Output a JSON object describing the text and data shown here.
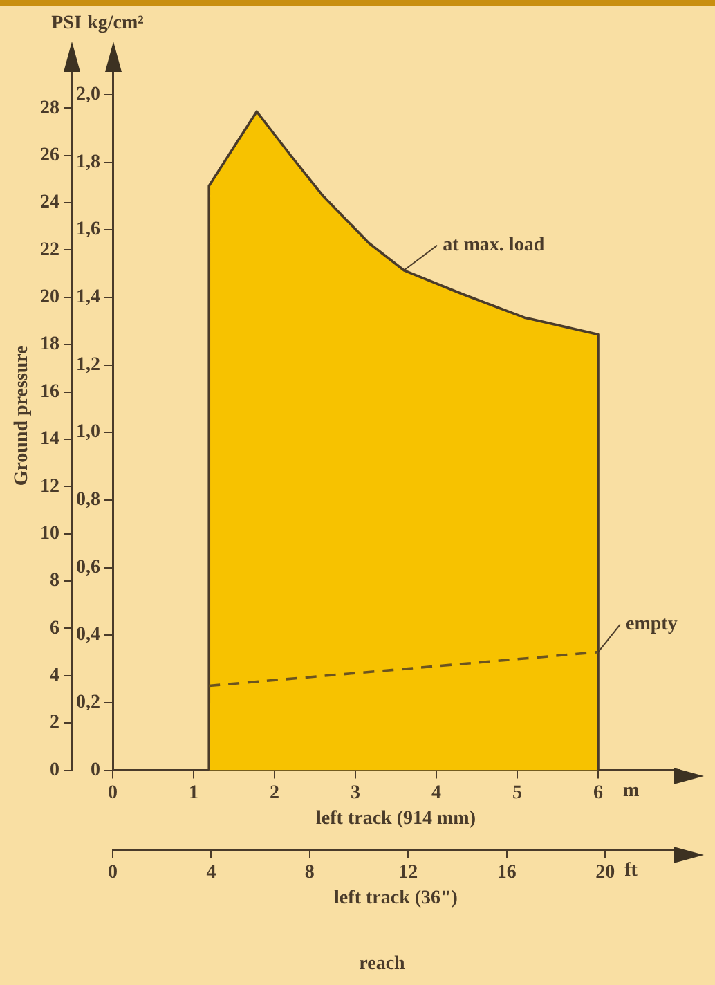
{
  "chart_data": {
    "type": "area",
    "xlabel": "left track (914 mm)",
    "x2label": "left track (36\")",
    "ylabel": "kg/cm²",
    "y2label": "PSI",
    "annotations": [
      "Ground pressure",
      "reach",
      "m",
      "ft"
    ],
    "series": [
      {
        "name": "at max. load",
        "type": "area",
        "color": "#f7c200",
        "x": [
          1.19,
          1.19,
          1.78,
          2.2,
          2.6,
          3.17,
          3.6,
          4.32,
          5.09,
          6,
          6
        ],
        "values": [
          0,
          1.73,
          1.95,
          1.82,
          1.7,
          1.56,
          1.48,
          1.41,
          1.34,
          1.29,
          0
        ]
      },
      {
        "name": "empty",
        "type": "line",
        "line_style": "dashed",
        "color": "#6b5420",
        "x": [
          1.19,
          3.6,
          6
        ],
        "values": [
          0.25,
          0.3,
          0.35
        ]
      }
    ],
    "xlim": [
      0,
      7
    ],
    "xticks": [
      0,
      1,
      2,
      3,
      4,
      5,
      6
    ],
    "x2lim": [
      0,
      23
    ],
    "x2ticks": [
      0,
      4,
      8,
      12,
      16,
      20
    ],
    "ylim": [
      0,
      2.1
    ],
    "yticks": [
      0,
      {
        "value": 0.2,
        "label": "0,2"
      },
      {
        "value": 0.4,
        "label": "0,4"
      },
      {
        "value": 0.6,
        "label": "0,6"
      },
      {
        "value": 0.8,
        "label": "0,8"
      },
      {
        "value": 1,
        "label": "1,0"
      },
      {
        "value": 1.2,
        "label": "1,2"
      },
      {
        "value": 1.4,
        "label": "1,4"
      },
      {
        "value": 1.6,
        "label": "1,6"
      },
      {
        "value": 1.8,
        "label": "1,8"
      },
      {
        "value": 2,
        "label": "2,0"
      }
    ],
    "y2lim": [
      0,
      30
    ],
    "y2ticks": [
      0,
      2,
      4,
      6,
      8,
      10,
      12,
      14,
      16,
      18,
      20,
      22,
      24,
      26,
      28
    ],
    "grid": false
  }
}
